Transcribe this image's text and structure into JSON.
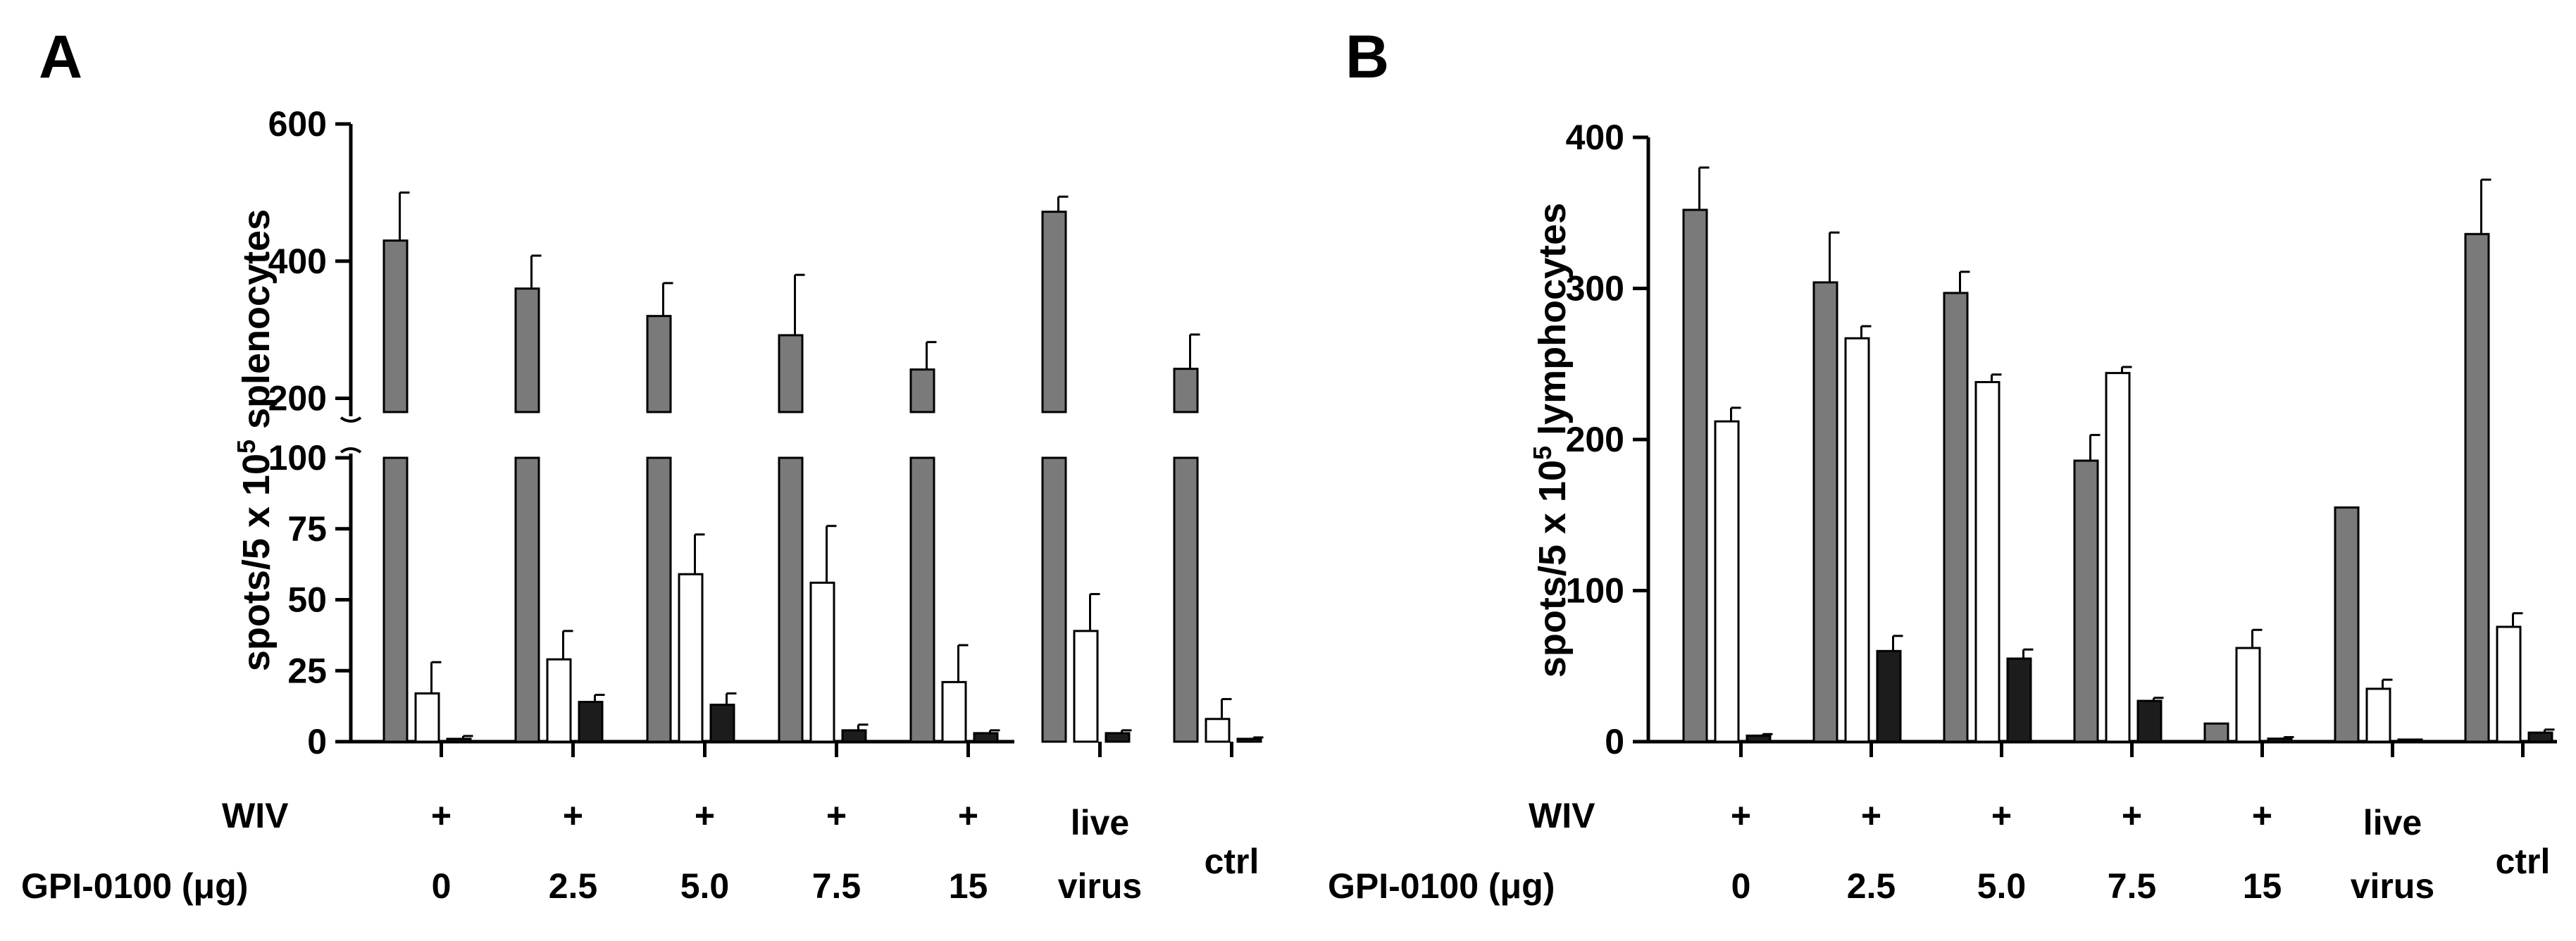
{
  "colors": {
    "series_gray": "#7a7a7a",
    "series_white": "#ffffff",
    "series_black": "#1c1c1c",
    "ink": "#000000"
  },
  "rows": {
    "wiv_label": "WIV",
    "gpi_label": "GPI-0100 (μg)"
  },
  "chart_data": [
    {
      "panel": "A",
      "type": "bar",
      "ylabel": "spots/5 x 10^5 splenocytes",
      "ylabel_main": "spots/5 x 10",
      "ylabel_sup": "5",
      "ylabel_tail": " splenocytes",
      "axis_break": true,
      "lower_ylim": [
        0,
        100
      ],
      "lower_ticks": [
        0,
        25,
        50,
        75,
        100
      ],
      "upper_ylim": [
        180,
        600
      ],
      "upper_ticks": [
        200,
        400,
        600
      ],
      "categories": [
        {
          "wiv": "+",
          "gpi": [
            "0"
          ]
        },
        {
          "wiv": "+",
          "gpi": [
            "2.5"
          ]
        },
        {
          "wiv": "+",
          "gpi": [
            "5.0"
          ]
        },
        {
          "wiv": "+",
          "gpi": [
            "7.5"
          ]
        },
        {
          "wiv": "+",
          "gpi": [
            "15"
          ]
        },
        {
          "wiv": "",
          "gpi": [
            "live",
            "virus"
          ]
        },
        {
          "wiv": "",
          "gpi": [
            "ctrl"
          ]
        }
      ],
      "series": [
        {
          "name": "gray",
          "values": [
            430,
            360,
            320,
            292,
            242,
            472,
            243
          ],
          "errors": [
            70,
            48,
            48,
            88,
            40,
            22,
            50
          ]
        },
        {
          "name": "white",
          "values": [
            17,
            29,
            59,
            56,
            21,
            39,
            8
          ],
          "errors": [
            11,
            10,
            14,
            20,
            13,
            13,
            7
          ]
        },
        {
          "name": "black",
          "values": [
            1,
            14,
            13,
            4,
            3,
            3,
            1
          ],
          "errors": [
            1,
            2.5,
            4,
            2,
            1,
            1,
            0.5
          ]
        }
      ]
    },
    {
      "panel": "B",
      "type": "bar",
      "ylabel": "spots/5 x 10^5 lymphocytes",
      "ylabel_main": "spots/5 x 10",
      "ylabel_sup": "5",
      "ylabel_tail": " lymphocytes",
      "axis_break": false,
      "ylim": [
        0,
        400
      ],
      "ticks": [
        0,
        100,
        200,
        300,
        400
      ],
      "categories": [
        {
          "wiv": "+",
          "gpi": [
            "0"
          ]
        },
        {
          "wiv": "+",
          "gpi": [
            "2.5"
          ]
        },
        {
          "wiv": "+",
          "gpi": [
            "5.0"
          ]
        },
        {
          "wiv": "+",
          "gpi": [
            "7.5"
          ]
        },
        {
          "wiv": "+",
          "gpi": [
            "15"
          ]
        },
        {
          "wiv": "",
          "gpi": [
            "live",
            "virus"
          ]
        },
        {
          "wiv": "",
          "gpi": [
            "ctrl"
          ]
        }
      ],
      "series": [
        {
          "name": "gray",
          "values": [
            352,
            304,
            297,
            186,
            12,
            155,
            336
          ],
          "errors": [
            28,
            33,
            14,
            17,
            0,
            0,
            36
          ]
        },
        {
          "name": "white",
          "values": [
            212,
            267,
            238,
            244,
            62,
            35,
            76
          ],
          "errors": [
            9,
            8,
            5,
            4,
            12,
            6,
            9
          ]
        },
        {
          "name": "black",
          "values": [
            4,
            60,
            55,
            27,
            2,
            0,
            6
          ],
          "errors": [
            1,
            10,
            6,
            2,
            1,
            0,
            2
          ]
        }
      ]
    }
  ]
}
